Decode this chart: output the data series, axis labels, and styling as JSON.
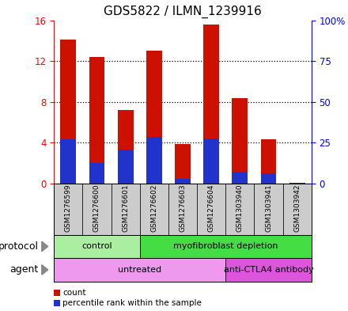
{
  "title": "GDS5822 / ILMN_1239916",
  "samples": [
    "GSM1276599",
    "GSM1276600",
    "GSM1276601",
    "GSM1276602",
    "GSM1276603",
    "GSM1276604",
    "GSM1303940",
    "GSM1303941",
    "GSM1303942"
  ],
  "count_values": [
    14.1,
    12.4,
    7.2,
    13.0,
    3.9,
    15.6,
    8.4,
    4.3,
    0.05
  ],
  "percentile_values": [
    27.0,
    12.5,
    21.0,
    28.5,
    3.0,
    27.5,
    7.0,
    6.0,
    0.3
  ],
  "ylim_left": [
    0,
    16
  ],
  "ylim_right": [
    0,
    100
  ],
  "yticks_left": [
    0,
    4,
    8,
    12,
    16
  ],
  "yticks_right": [
    0,
    25,
    50,
    75,
    100
  ],
  "ytick_labels_right": [
    "0",
    "25",
    "50",
    "75",
    "100%"
  ],
  "bar_color_red": "#cc1100",
  "bar_color_blue": "#2233cc",
  "bar_width": 0.55,
  "protocol_labels": [
    {
      "text": "control",
      "start": 0,
      "end": 2,
      "color": "#aaeea0"
    },
    {
      "text": "myofibroblast depletion",
      "start": 3,
      "end": 8,
      "color": "#44dd44"
    }
  ],
  "agent_labels": [
    {
      "text": "untreated",
      "start": 0,
      "end": 5,
      "color": "#ee99ee"
    },
    {
      "text": "anti-CTLA4 antibody",
      "start": 6,
      "end": 8,
      "color": "#dd55dd"
    }
  ],
  "protocol_row_label": "protocol",
  "agent_row_label": "agent",
  "legend_count_label": "count",
  "legend_percentile_label": "percentile rank within the sample",
  "bg_color": "#cccccc",
  "title_fontsize": 11,
  "tick_label_fontsize": 8.5,
  "row_label_fontsize": 9,
  "sample_fontsize": 6.5,
  "annot_fontsize": 8,
  "legend_fontsize": 7.5
}
